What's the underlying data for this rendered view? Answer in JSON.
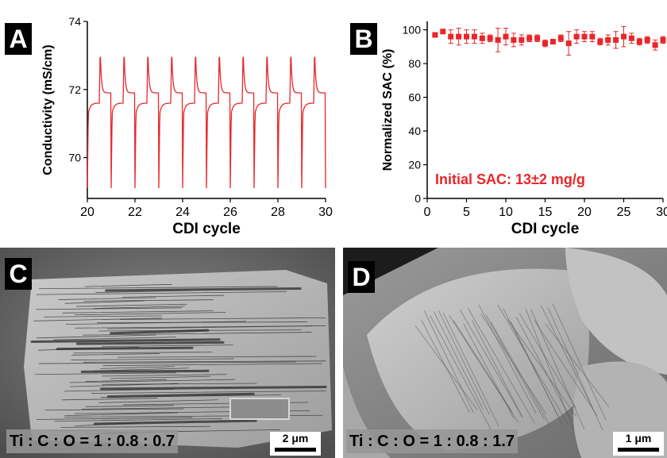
{
  "panels": {
    "a": {
      "letter": "A"
    },
    "b": {
      "letter": "B"
    },
    "c": {
      "letter": "C"
    },
    "d": {
      "letter": "D"
    }
  },
  "chart_data": [
    {
      "type": "line",
      "xlabel": "CDI cycle",
      "ylabel": "Conductivity (mS/cm)",
      "xlim": [
        20,
        30
      ],
      "ylim": [
        68.8,
        74
      ],
      "xticks": [
        20,
        22,
        24,
        26,
        28,
        30
      ],
      "yticks": [
        70,
        72,
        74
      ],
      "color": "#e8262a",
      "cycle_start": 20,
      "cycle_count": 10,
      "baseline": 71.9,
      "peak_max": 73.2,
      "trough_min": 69.1
    },
    {
      "type": "scatter",
      "xlabel": "CDI cycle",
      "ylabel": "Normalized SAC (%)",
      "xlim": [
        0,
        30
      ],
      "ylim": [
        0,
        105
      ],
      "xticks": [
        0,
        5,
        10,
        15,
        20,
        25,
        30
      ],
      "yticks": [
        0,
        20,
        40,
        60,
        80,
        100
      ],
      "color": "#e8262a",
      "annotation": "Initial SAC: 13±2 mg/g",
      "x": [
        1,
        2,
        3,
        4,
        5,
        6,
        7,
        8,
        9,
        10,
        11,
        12,
        13,
        14,
        15,
        16,
        17,
        18,
        19,
        20,
        21,
        22,
        23,
        24,
        25,
        26,
        27,
        28,
        29,
        30
      ],
      "y": [
        97,
        99,
        96,
        96,
        96,
        96,
        95,
        95,
        94,
        96,
        94,
        94,
        95,
        95,
        92,
        93,
        95,
        92,
        96,
        96,
        96,
        93,
        94,
        94,
        96,
        95,
        93,
        94,
        91,
        94
      ],
      "err": [
        1,
        1,
        4,
        5,
        4,
        4,
        3,
        2,
        7,
        5,
        4,
        3,
        2,
        2,
        2,
        1,
        2,
        7,
        4,
        3,
        3,
        2,
        3,
        5,
        6,
        3,
        2,
        2,
        3,
        2
      ]
    }
  ],
  "sem": {
    "c": {
      "caption": "Ti : C : O = 1 : 0.8 : 0.7",
      "scale": "2 μm"
    },
    "d": {
      "caption": "Ti : C : O = 1 : 0.8 : 1.7",
      "scale": "1 μm"
    }
  }
}
